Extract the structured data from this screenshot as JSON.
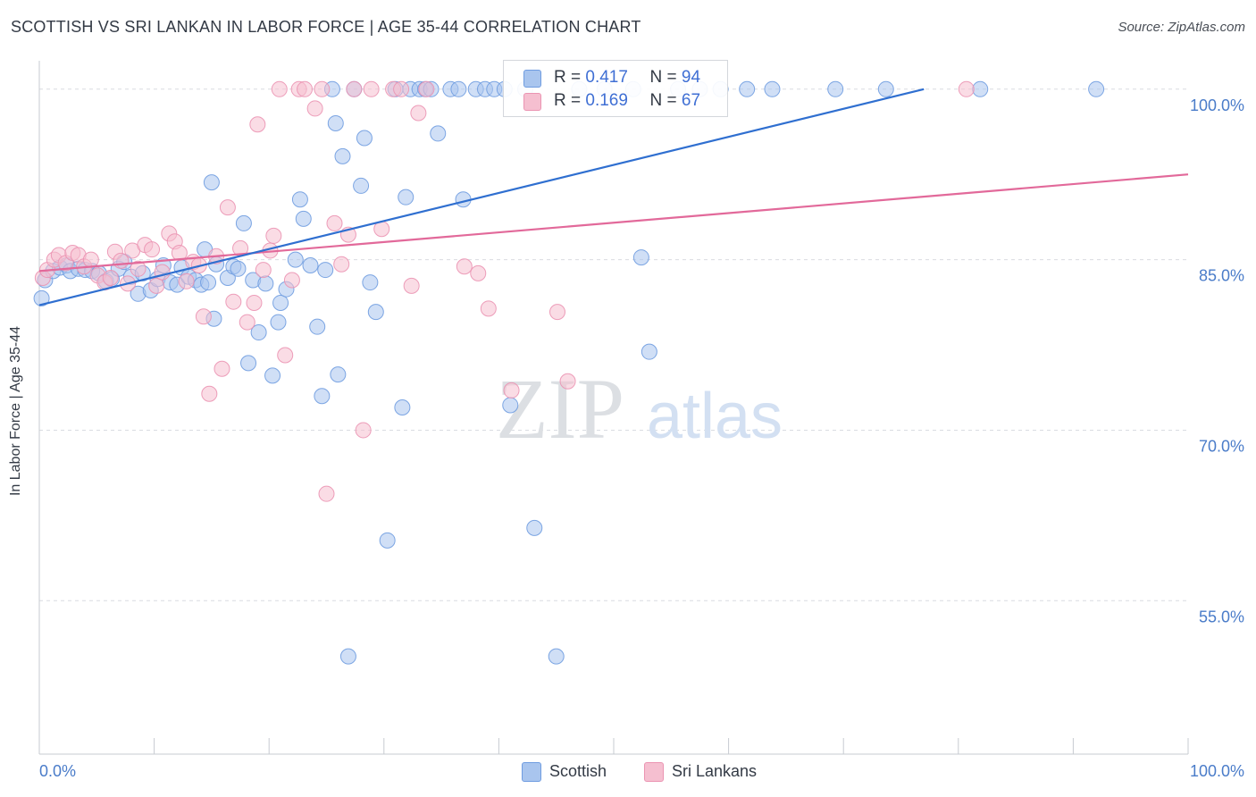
{
  "title": "SCOTTISH VS SRI LANKAN IN LABOR FORCE | AGE 35-44 CORRELATION CHART",
  "source": "Source: ZipAtlas.com",
  "watermark": {
    "zip": "ZIP",
    "atlas": "atlas"
  },
  "legend": {
    "scottish": {
      "r_label": "R =",
      "r_value": "0.417",
      "n_label": "N =",
      "n_value": "94"
    },
    "srilankan": {
      "r_label": "R =",
      "r_value": "0.169",
      "n_label": "N =",
      "n_value": "67"
    }
  },
  "bottom_legend": {
    "scottish": "Scottish",
    "srilankan": "Sri Lankans"
  },
  "chart_data": {
    "type": "scatter",
    "ylabel": "In Labor Force | Age 35-44",
    "xlabel": "",
    "xlim": [
      0,
      100
    ],
    "ylim": [
      41.5,
      102.5
    ],
    "y_ticks": [
      {
        "value": 100,
        "label": "100.0%"
      },
      {
        "value": 85,
        "label": "85.0%"
      },
      {
        "value": 70,
        "label": "70.0%"
      },
      {
        "value": 55,
        "label": "55.0%"
      }
    ],
    "x_tick_labels": {
      "min": "0.0%",
      "max": "100.0%"
    },
    "grid": true,
    "colors": {
      "scottish_fill": "#a9c5ee",
      "scottish_stroke": "#6f9ce0",
      "scottish_line": "#2f6fd0",
      "srilankan_fill": "#f5bfd0",
      "srilankan_stroke": "#eb94b2",
      "srilankan_line": "#e2699a",
      "tick_label": "#4a7cc9"
    },
    "series": [
      {
        "name": "Scottish",
        "trend": {
          "x0": 0,
          "y0": 81.0,
          "x1": 77,
          "y1": 100.0
        },
        "points": [
          [
            0.2,
            81.6
          ],
          [
            0.5,
            83.2
          ],
          [
            1.2,
            84.0
          ],
          [
            1.8,
            84.3
          ],
          [
            2.4,
            84.5
          ],
          [
            2.7,
            84.0
          ],
          [
            3.4,
            84.2
          ],
          [
            4.0,
            84.1
          ],
          [
            4.6,
            84.0
          ],
          [
            5.2,
            83.8
          ],
          [
            5.8,
            83.1
          ],
          [
            6.3,
            83.3
          ],
          [
            6.9,
            84.2
          ],
          [
            7.4,
            84.8
          ],
          [
            8.0,
            83.5
          ],
          [
            8.6,
            82.0
          ],
          [
            9.0,
            83.8
          ],
          [
            9.7,
            82.3
          ],
          [
            10.3,
            83.3
          ],
          [
            10.8,
            84.5
          ],
          [
            11.4,
            83.0
          ],
          [
            12.0,
            82.8
          ],
          [
            12.4,
            84.3
          ],
          [
            13.0,
            83.5
          ],
          [
            13.6,
            83.2
          ],
          [
            14.1,
            82.8
          ],
          [
            14.7,
            83.0
          ],
          [
            15.2,
            79.8
          ],
          [
            14.4,
            85.9
          ],
          [
            15.0,
            91.8
          ],
          [
            15.4,
            84.6
          ],
          [
            16.4,
            83.4
          ],
          [
            16.9,
            84.4
          ],
          [
            17.3,
            84.2
          ],
          [
            17.8,
            88.2
          ],
          [
            18.2,
            75.9
          ],
          [
            18.6,
            83.2
          ],
          [
            19.1,
            78.6
          ],
          [
            19.7,
            82.9
          ],
          [
            20.3,
            74.8
          ],
          [
            20.8,
            79.5
          ],
          [
            21.0,
            81.2
          ],
          [
            21.5,
            82.4
          ],
          [
            22.3,
            85.0
          ],
          [
            22.7,
            90.3
          ],
          [
            23.0,
            88.6
          ],
          [
            23.6,
            84.5
          ],
          [
            24.2,
            79.1
          ],
          [
            24.6,
            73.0
          ],
          [
            24.9,
            84.1
          ],
          [
            25.5,
            100.0
          ],
          [
            25.8,
            97.0
          ],
          [
            26.0,
            74.9
          ],
          [
            26.4,
            94.1
          ],
          [
            26.9,
            50.1
          ],
          [
            27.4,
            100.0
          ],
          [
            28.0,
            91.5
          ],
          [
            28.3,
            95.7
          ],
          [
            28.8,
            83.0
          ],
          [
            29.3,
            80.4
          ],
          [
            30.3,
            60.3
          ],
          [
            31.0,
            100.0
          ],
          [
            31.6,
            72.0
          ],
          [
            31.9,
            90.5
          ],
          [
            32.3,
            100.0
          ],
          [
            33.1,
            100.0
          ],
          [
            33.6,
            100.0
          ],
          [
            34.1,
            100.0
          ],
          [
            34.7,
            96.1
          ],
          [
            35.8,
            100.0
          ],
          [
            36.5,
            100.0
          ],
          [
            36.9,
            90.3
          ],
          [
            38.0,
            100.0
          ],
          [
            38.8,
            100.0
          ],
          [
            39.6,
            100.0
          ],
          [
            40.5,
            100.0
          ],
          [
            41.0,
            72.2
          ],
          [
            42.3,
            100.0
          ],
          [
            43.1,
            61.4
          ],
          [
            45.0,
            50.1
          ],
          [
            47.0,
            100.0
          ],
          [
            49.2,
            100.0
          ],
          [
            51.7,
            100.0
          ],
          [
            52.4,
            85.2
          ],
          [
            53.1,
            76.9
          ],
          [
            55.6,
            100.0
          ],
          [
            57.5,
            100.0
          ],
          [
            59.3,
            100.0
          ],
          [
            61.6,
            100.0
          ],
          [
            63.8,
            100.0
          ],
          [
            69.3,
            100.0
          ],
          [
            73.7,
            100.0
          ],
          [
            81.9,
            100.0
          ],
          [
            92.0,
            100.0
          ]
        ]
      },
      {
        "name": "Sri Lankans",
        "trend": {
          "x0": 0,
          "y0": 84.0,
          "x1": 100,
          "y1": 92.5
        },
        "points": [
          [
            0.3,
            83.4
          ],
          [
            0.7,
            84.1
          ],
          [
            1.3,
            85.0
          ],
          [
            1.7,
            85.4
          ],
          [
            2.3,
            84.7
          ],
          [
            2.9,
            85.6
          ],
          [
            3.4,
            85.4
          ],
          [
            3.9,
            84.4
          ],
          [
            4.5,
            85.0
          ],
          [
            5.1,
            83.6
          ],
          [
            5.7,
            83.0
          ],
          [
            6.2,
            83.4
          ],
          [
            6.6,
            85.7
          ],
          [
            7.1,
            84.9
          ],
          [
            7.7,
            82.9
          ],
          [
            8.1,
            85.8
          ],
          [
            8.6,
            84.2
          ],
          [
            9.2,
            86.3
          ],
          [
            9.8,
            85.9
          ],
          [
            10.2,
            82.7
          ],
          [
            10.7,
            83.9
          ],
          [
            11.3,
            87.3
          ],
          [
            11.8,
            86.6
          ],
          [
            12.2,
            85.6
          ],
          [
            12.8,
            83.1
          ],
          [
            13.4,
            84.8
          ],
          [
            13.9,
            84.5
          ],
          [
            14.3,
            80.0
          ],
          [
            14.8,
            73.2
          ],
          [
            15.4,
            85.3
          ],
          [
            15.9,
            75.4
          ],
          [
            16.4,
            89.6
          ],
          [
            16.9,
            81.3
          ],
          [
            17.5,
            86.0
          ],
          [
            18.1,
            79.5
          ],
          [
            18.7,
            81.2
          ],
          [
            19.0,
            96.9
          ],
          [
            19.5,
            84.1
          ],
          [
            20.1,
            85.8
          ],
          [
            20.4,
            87.1
          ],
          [
            20.9,
            100.0
          ],
          [
            21.4,
            76.6
          ],
          [
            22.0,
            83.2
          ],
          [
            22.6,
            100.0
          ],
          [
            23.1,
            100.0
          ],
          [
            24.0,
            98.3
          ],
          [
            24.6,
            100.0
          ],
          [
            25.0,
            64.4
          ],
          [
            25.7,
            88.2
          ],
          [
            26.3,
            84.6
          ],
          [
            26.9,
            87.2
          ],
          [
            27.4,
            100.0
          ],
          [
            28.2,
            70.0
          ],
          [
            28.9,
            100.0
          ],
          [
            29.8,
            87.7
          ],
          [
            30.8,
            100.0
          ],
          [
            31.5,
            100.0
          ],
          [
            32.4,
            82.7
          ],
          [
            33.0,
            97.9
          ],
          [
            33.7,
            100.0
          ],
          [
            37.0,
            84.4
          ],
          [
            38.2,
            83.8
          ],
          [
            39.1,
            80.7
          ],
          [
            41.1,
            73.5
          ],
          [
            45.1,
            80.4
          ],
          [
            46.0,
            74.3
          ],
          [
            80.7,
            100.0
          ]
        ]
      }
    ]
  }
}
